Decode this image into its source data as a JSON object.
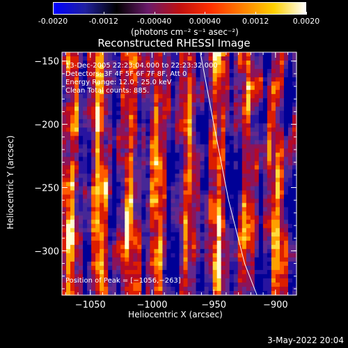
{
  "colorbar": {
    "ticks": [
      "-0.0020",
      "-0.0012",
      "-0.00040",
      "0.00040",
      "0.0012",
      "0.0020"
    ],
    "tick_values": [
      -0.002,
      -0.0012,
      -0.0004,
      0.0004,
      0.0012,
      0.002
    ],
    "units": "(photons cm⁻² s⁻¹ asec⁻²)",
    "colors": [
      "#0000ff",
      "#2020a0",
      "#000000",
      "#6a1a6a",
      "#c01010",
      "#ff3000",
      "#ff8000",
      "#ffd000",
      "#ffffff"
    ]
  },
  "chart_data": {
    "type": "heatmap",
    "title": "Reconstructed RHESSI Image",
    "xlabel": "Heliocentric X (arcsec)",
    "ylabel": "Heliocentric Y (arcsec)",
    "xlim": [
      -1073,
      -883
    ],
    "ylim": [
      -335,
      -143
    ],
    "xticks": [
      -1050,
      -1000,
      -950,
      -900
    ],
    "xtick_labels": [
      "−1050",
      "−1000",
      "−950",
      "−900"
    ],
    "yticks": [
      -150,
      -200,
      -250,
      -300
    ],
    "ytick_labels": [
      "−150",
      "−200",
      "−250",
      "−300"
    ],
    "limb_curve": [
      [
        -961,
        -143
      ],
      [
        -950,
        -200
      ],
      [
        -938,
        -260
      ],
      [
        -925,
        -310
      ],
      [
        -915,
        -335
      ]
    ],
    "peak": [
      -1056,
      -263
    ],
    "annotations": [
      "13-Dec-2005 22:23:04.000 to 22:23:32.000",
      "Detectors: 3F 4F 5F 6F 7F 8F, Att 0",
      "Energy Range: 12.0 - 25.0 keV",
      "Clean    Total counts: 885."
    ],
    "peak_label": "Position of Peak = [−1056,−263]",
    "grid": false
  },
  "footer": {
    "timestamp": "3-May-2022 20:04"
  }
}
